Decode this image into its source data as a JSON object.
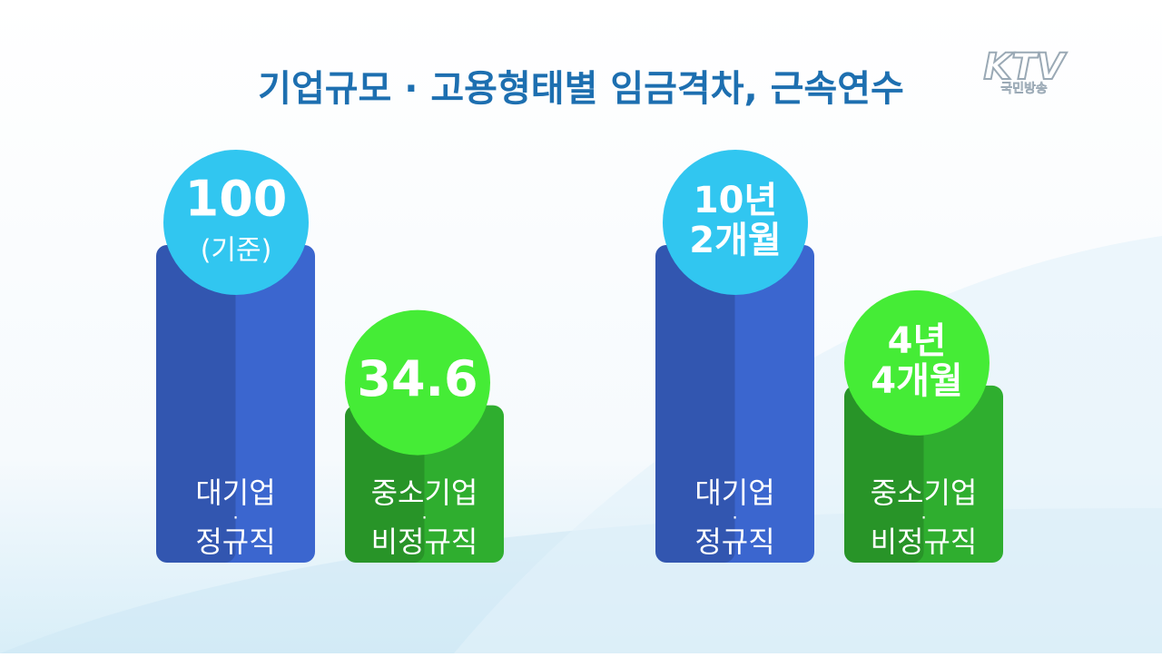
{
  "logo": {
    "brand": "KTV",
    "subtitle": "국민방송"
  },
  "chart_data": [
    {
      "type": "bar",
      "title": "기업규모 · 고용형태별 임금격차, 근속연수",
      "categories": [
        [
          "대기업",
          "·",
          "정규직"
        ],
        [
          "중소기업",
          "·",
          "비정규직"
        ]
      ],
      "values": [
        100,
        34.6
      ],
      "annotations": [
        "(기준)",
        null
      ],
      "colors": [
        "#3b66cf",
        "#2fae2f"
      ],
      "bubble_colors": [
        "#31c6f0",
        "#45ec36"
      ]
    },
    {
      "type": "bar",
      "categories": [
        [
          "대기업",
          "·",
          "정규직"
        ],
        [
          "중소기업",
          "·",
          "비정규직"
        ]
      ],
      "values": [
        122,
        52
      ],
      "value_labels": [
        "10년 2개월",
        "4년 4개월"
      ],
      "colors": [
        "#3b66cf",
        "#2fae2f"
      ],
      "bubble_colors": [
        "#31c6f0",
        "#45ec36"
      ]
    }
  ]
}
